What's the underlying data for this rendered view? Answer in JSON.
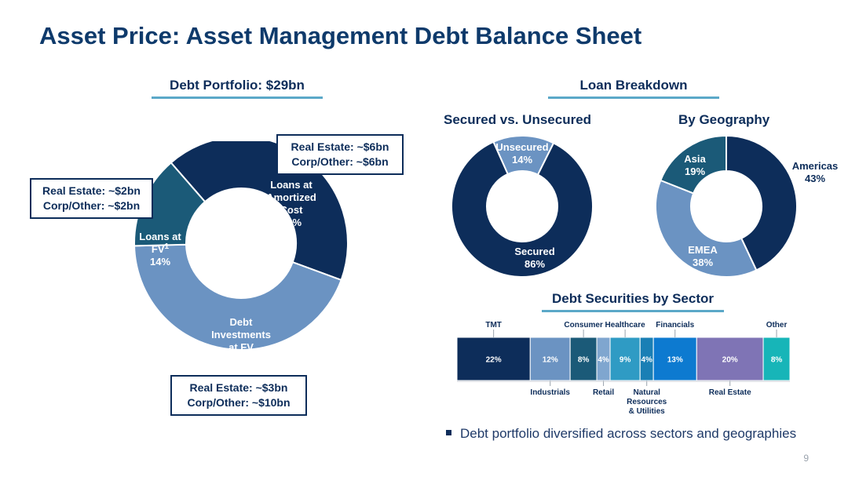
{
  "title": "Asset Price: Asset Management Debt Balance Sheet",
  "debt_portfolio": {
    "heading": "Debt Portfolio: $29bn",
    "callouts": {
      "amortized": [
        "Real Estate: ~$6bn",
        "Corp/Other: ~$6bn"
      ],
      "fv_loans": [
        "Real Estate: ~$2bn",
        "Corp/Other: ~$2bn"
      ],
      "investments": [
        "Real Estate: ~$3bn",
        "Corp/Other: ~$10bn"
      ]
    }
  },
  "loan_breakdown": {
    "heading": "Loan Breakdown",
    "secured_title": "Secured vs. Unsecured",
    "geo_title": "By Geography"
  },
  "debt_securities": {
    "heading": "Debt Securities by Sector"
  },
  "bullet": "Debt portfolio diversified across sectors and geographies",
  "page_number": "9",
  "colors": {
    "navy": "#0d2d5a",
    "light_blue": "#6b93c2",
    "teal": "#1b5a78",
    "accent_line": "#5ba8c8"
  },
  "chart_data": [
    {
      "type": "pie",
      "variant": "donut",
      "slices": [
        {
          "label": "Loans at Amortized Cost",
          "label_lines": [
            "Loans at",
            "Amortized",
            "Cost"
          ],
          "value": 42,
          "value_label": "42%",
          "color": "#0d2d5a"
        },
        {
          "label": "Debt Investments at FV",
          "label_lines": [
            "Debt",
            "Investments",
            "at FV"
          ],
          "value": 44,
          "value_label": "44%",
          "color": "#6b93c2"
        },
        {
          "label": "Loans at FV",
          "label_lines": [
            "Loans at",
            "FV"
          ],
          "value": 14,
          "value_label": "14%",
          "color": "#1b5a78",
          "footnote": "1"
        }
      ]
    },
    {
      "type": "pie",
      "variant": "donut",
      "title": "Secured vs. Unsecured",
      "slices": [
        {
          "label": "Unsecured",
          "label_lines": [
            "Unsecured"
          ],
          "value": 14,
          "value_label": "14%",
          "color": "#6b93c2"
        },
        {
          "label": "Secured",
          "label_lines": [
            "Secured"
          ],
          "value": 86,
          "value_label": "86%",
          "color": "#0d2d5a"
        }
      ]
    },
    {
      "type": "pie",
      "variant": "donut",
      "title": "By Geography",
      "slices": [
        {
          "label": "Americas",
          "label_lines": [
            "Americas"
          ],
          "value": 43,
          "value_label": "43%",
          "color": "#0d2d5a"
        },
        {
          "label": "EMEA",
          "label_lines": [
            "EMEA"
          ],
          "value": 38,
          "value_label": "38%",
          "color": "#6b93c2"
        },
        {
          "label": "Asia",
          "label_lines": [
            "Asia"
          ],
          "value": 19,
          "value_label": "19%",
          "color": "#1b5a78"
        }
      ]
    },
    {
      "type": "bar",
      "variant": "100%-stacked-horizontal",
      "title": "Debt Securities by Sector",
      "segments": [
        {
          "label": "TMT",
          "value": 22,
          "value_label": "22%",
          "color": "#0d2d5a",
          "label_pos": "top"
        },
        {
          "label": "Industrials",
          "value": 12,
          "value_label": "12%",
          "color": "#6b93c2",
          "label_pos": "bottom"
        },
        {
          "label": "Consumer",
          "value": 8,
          "value_label": "8%",
          "color": "#1b5a78",
          "label_pos": "top"
        },
        {
          "label": "Retail",
          "value": 4,
          "value_label": "4%",
          "color": "#7fa6cf",
          "label_pos": "bottom"
        },
        {
          "label": "Healthcare",
          "value": 9,
          "value_label": "9%",
          "color": "#2f9bc4",
          "label_pos": "top"
        },
        {
          "label": "Natural Resources & Utilities",
          "label_lines": [
            "Natural",
            "Resources",
            "& Utilities"
          ],
          "value": 4,
          "value_label": "4%",
          "color": "#1a7fb5",
          "label_pos": "bottom"
        },
        {
          "label": "Financials",
          "value": 13,
          "value_label": "13%",
          "color": "#0d7ad0",
          "label_pos": "top"
        },
        {
          "label": "Real Estate",
          "value": 20,
          "value_label": "20%",
          "color": "#7f74b5",
          "label_pos": "bottom"
        },
        {
          "label": "Other",
          "value": 8,
          "value_label": "8%",
          "color": "#17b5b8",
          "label_pos": "top"
        }
      ]
    }
  ]
}
